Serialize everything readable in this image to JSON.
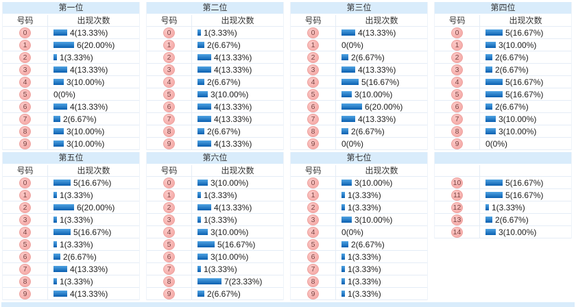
{
  "headers": {
    "number": "号码",
    "count": "出现次数"
  },
  "colors": {
    "section_band": "#d9ecfb",
    "bar_top": "#4fa3e3",
    "bar_bottom": "#0a5fb0",
    "ball_fill": "#f6aeab",
    "ball_border": "#eda19e",
    "ball_text": "#7a4443",
    "row_border": "#e4ecf6",
    "label_text": "#1c1c1c"
  },
  "chart_data": [
    {
      "type": "bar",
      "title": "第一位",
      "show_header": true,
      "xlabel": "号码",
      "ylabel": "出现次数",
      "categories": [
        "0",
        "1",
        "2",
        "3",
        "4",
        "5",
        "6",
        "7",
        "8",
        "9"
      ],
      "values": [
        4,
        6,
        1,
        4,
        3,
        0,
        4,
        2,
        3,
        3
      ],
      "labels": [
        "4(13.33%)",
        "6(20.00%)",
        "1(3.33%)",
        "4(13.33%)",
        "3(10.00%)",
        "0(0%)",
        "4(13.33%)",
        "2(6.67%)",
        "3(10.00%)",
        "3(10.00%)"
      ]
    },
    {
      "type": "bar",
      "title": "第二位",
      "show_header": true,
      "xlabel": "号码",
      "ylabel": "出现次数",
      "categories": [
        "0",
        "1",
        "2",
        "3",
        "4",
        "5",
        "6",
        "7",
        "8",
        "9"
      ],
      "values": [
        1,
        2,
        4,
        4,
        2,
        3,
        4,
        4,
        2,
        4
      ],
      "labels": [
        "1(3.33%)",
        "2(6.67%)",
        "4(13.33%)",
        "4(13.33%)",
        "2(6.67%)",
        "3(10.00%)",
        "4(13.33%)",
        "4(13.33%)",
        "2(6.67%)",
        "4(13.33%)"
      ]
    },
    {
      "type": "bar",
      "title": "第三位",
      "show_header": true,
      "xlabel": "号码",
      "ylabel": "出现次数",
      "categories": [
        "0",
        "1",
        "2",
        "3",
        "4",
        "5",
        "6",
        "7",
        "8",
        "9"
      ],
      "values": [
        4,
        0,
        2,
        4,
        5,
        3,
        6,
        4,
        2,
        0
      ],
      "labels": [
        "4(13.33%)",
        "0(0%)",
        "2(6.67%)",
        "4(13.33%)",
        "5(16.67%)",
        "3(10.00%)",
        "6(20.00%)",
        "4(13.33%)",
        "2(6.67%)",
        "0(0%)"
      ]
    },
    {
      "type": "bar",
      "title": "第四位",
      "show_header": true,
      "xlabel": "号码",
      "ylabel": "出现次数",
      "categories": [
        "0",
        "1",
        "2",
        "3",
        "4",
        "5",
        "6",
        "7",
        "8",
        "9"
      ],
      "values": [
        5,
        3,
        2,
        2,
        5,
        5,
        2,
        3,
        3,
        0
      ],
      "labels": [
        "5(16.67%)",
        "3(10.00%)",
        "2(6.67%)",
        "2(6.67%)",
        "5(16.67%)",
        "5(16.67%)",
        "2(6.67%)",
        "3(10.00%)",
        "3(10.00%)",
        "0(0%)"
      ]
    },
    {
      "type": "bar",
      "title": "第五位",
      "show_header": true,
      "xlabel": "号码",
      "ylabel": "出现次数",
      "categories": [
        "0",
        "1",
        "2",
        "3",
        "4",
        "5",
        "6",
        "7",
        "8",
        "9"
      ],
      "values": [
        5,
        1,
        6,
        1,
        5,
        1,
        2,
        4,
        1,
        4
      ],
      "labels": [
        "5(16.67%)",
        "1(3.33%)",
        "6(20.00%)",
        "1(3.33%)",
        "5(16.67%)",
        "1(3.33%)",
        "2(6.67%)",
        "4(13.33%)",
        "1(3.33%)",
        "4(13.33%)"
      ]
    },
    {
      "type": "bar",
      "title": "第六位",
      "show_header": true,
      "xlabel": "号码",
      "ylabel": "出现次数",
      "categories": [
        "0",
        "1",
        "2",
        "3",
        "4",
        "5",
        "6",
        "7",
        "8",
        "9"
      ],
      "values": [
        3,
        1,
        4,
        1,
        3,
        5,
        3,
        1,
        7,
        2
      ],
      "labels": [
        "3(10.00%)",
        "1(3.33%)",
        "4(13.33%)",
        "1(3.33%)",
        "3(10.00%)",
        "5(16.67%)",
        "3(10.00%)",
        "1(3.33%)",
        "7(23.33%)",
        "2(6.67%)"
      ]
    },
    {
      "type": "bar",
      "title": "第七位",
      "show_header": true,
      "xlabel": "号码",
      "ylabel": "出现次数",
      "categories": [
        "0",
        "1",
        "2",
        "3",
        "4",
        "5",
        "6",
        "7",
        "8",
        "9"
      ],
      "values": [
        3,
        1,
        1,
        3,
        0,
        2,
        1,
        1,
        1,
        1
      ],
      "labels": [
        "3(10.00%)",
        "1(3.33%)",
        "1(3.33%)",
        "3(10.00%)",
        "0(0%)",
        "2(6.67%)",
        "1(3.33%)",
        "1(3.33%)",
        "1(3.33%)",
        "1(3.33%)"
      ]
    },
    {
      "type": "bar",
      "title": "",
      "show_header": false,
      "xlabel": "",
      "ylabel": "",
      "categories": [
        "10",
        "11",
        "12",
        "13",
        "14"
      ],
      "values": [
        5,
        5,
        1,
        2,
        3
      ],
      "labels": [
        "5(16.67%)",
        "5(16.67%)",
        "1(3.33%)",
        "2(6.67%)",
        "3(10.00%)"
      ]
    }
  ]
}
